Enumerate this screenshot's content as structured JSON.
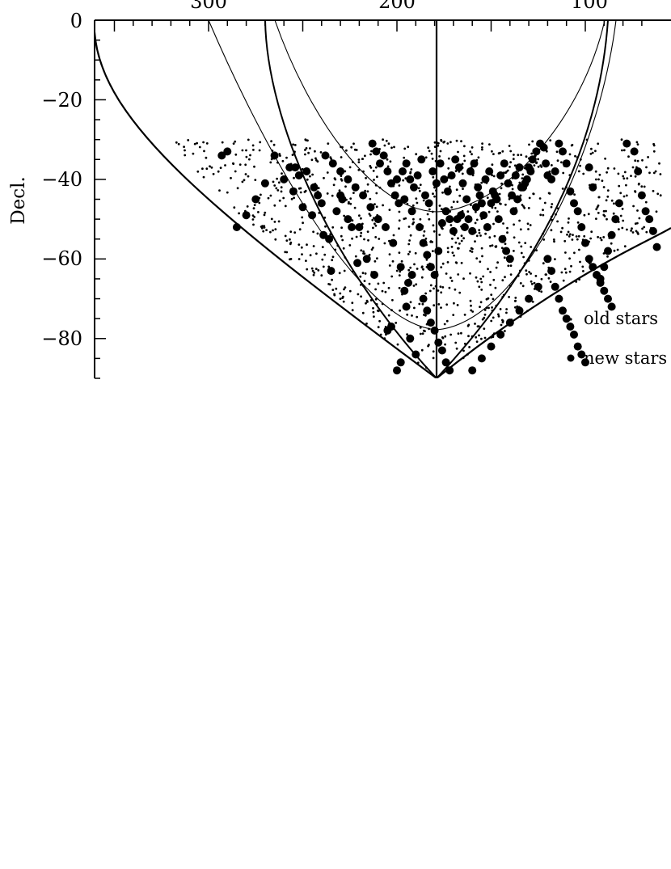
{
  "chart_data": {
    "type": "scatter",
    "title": "",
    "xlabel": "",
    "ylabel": "Decl.",
    "x_direction": "decreasing to the right",
    "xlim": [
      355,
      60
    ],
    "ylim": [
      -90,
      0
    ],
    "x_tick_labels": [
      "300",
      "200",
      "100"
    ],
    "y_tick_labels": [
      "0",
      "-20",
      "-40",
      "-60",
      "-80"
    ],
    "y_tick_label_text": [
      "0",
      "−20",
      "−40",
      "−60",
      "−80"
    ],
    "grid": false,
    "legend_position": "right",
    "series": [
      {
        "name": "old stars",
        "marker": "small dot"
      },
      {
        "name": "new stars",
        "marker": "large filled circle"
      }
    ],
    "legend_labels": [
      "old stars",
      "new stars"
    ],
    "new_stars": [
      [
        293,
        -34
      ],
      [
        290,
        -33
      ],
      [
        265,
        -34
      ],
      [
        257,
        -37
      ],
      [
        254,
        -37
      ],
      [
        252,
        -39
      ],
      [
        248,
        -38
      ],
      [
        244,
        -42
      ],
      [
        242,
        -44
      ],
      [
        240,
        -46
      ],
      [
        239,
        -54
      ],
      [
        236,
        -55
      ],
      [
        235,
        -63
      ],
      [
        229,
        -45
      ],
      [
        224,
        -52
      ],
      [
        221,
        -61
      ],
      [
        216,
        -60
      ],
      [
        212,
        -64
      ],
      [
        205,
        -78
      ],
      [
        203,
        -77
      ],
      [
        200,
        -88
      ],
      [
        198,
        -86
      ],
      [
        195,
        -72
      ],
      [
        193,
        -80
      ],
      [
        190,
        -84
      ],
      [
        213,
        -31
      ],
      [
        211,
        -33
      ],
      [
        209,
        -36
      ],
      [
        207,
        -34
      ],
      [
        205,
        -38
      ],
      [
        203,
        -41
      ],
      [
        201,
        -44
      ],
      [
        199,
        -46
      ],
      [
        197,
        -38
      ],
      [
        195,
        -36
      ],
      [
        193,
        -40
      ],
      [
        191,
        -42
      ],
      [
        189,
        -39
      ],
      [
        187,
        -35
      ],
      [
        185,
        -44
      ],
      [
        183,
        -46
      ],
      [
        181,
        -38
      ],
      [
        179,
        -41
      ],
      [
        177,
        -36
      ],
      [
        175,
        -40
      ],
      [
        173,
        -43
      ],
      [
        171,
        -39
      ],
      [
        169,
        -35
      ],
      [
        167,
        -37
      ],
      [
        165,
        -41
      ],
      [
        163,
        -45
      ],
      [
        161,
        -38
      ],
      [
        159,
        -36
      ],
      [
        157,
        -42
      ],
      [
        155,
        -46
      ],
      [
        153,
        -40
      ],
      [
        151,
        -38
      ],
      [
        149,
        -43
      ],
      [
        147,
        -45
      ],
      [
        145,
        -39
      ],
      [
        143,
        -36
      ],
      [
        141,
        -41
      ],
      [
        139,
        -44
      ],
      [
        137,
        -39
      ],
      [
        135,
        -37
      ],
      [
        133,
        -42
      ],
      [
        131,
        -40
      ],
      [
        129,
        -38
      ],
      [
        200,
        -40
      ],
      [
        196,
        -45
      ],
      [
        192,
        -48
      ],
      [
        188,
        -52
      ],
      [
        186,
        -56
      ],
      [
        184,
        -59
      ],
      [
        182,
        -62
      ],
      [
        180,
        -64
      ],
      [
        178,
        -58
      ],
      [
        176,
        -51
      ],
      [
        174,
        -48
      ],
      [
        172,
        -50
      ],
      [
        170,
        -53
      ],
      [
        168,
        -50
      ],
      [
        166,
        -49
      ],
      [
        164,
        -52
      ],
      [
        162,
        -50
      ],
      [
        160,
        -53
      ],
      [
        158,
        -47
      ],
      [
        156,
        -44
      ],
      [
        154,
        -49
      ],
      [
        152,
        -52
      ],
      [
        150,
        -46
      ],
      [
        148,
        -44
      ],
      [
        146,
        -50
      ],
      [
        144,
        -55
      ],
      [
        142,
        -58
      ],
      [
        140,
        -60
      ],
      [
        138,
        -48
      ],
      [
        136,
        -45
      ],
      [
        134,
        -42
      ],
      [
        132,
        -41
      ],
      [
        130,
        -37
      ],
      [
        128,
        -35
      ],
      [
        126,
        -33
      ],
      [
        124,
        -31
      ],
      [
        122,
        -32
      ],
      [
        121,
        -36
      ],
      [
        120,
        -39
      ],
      [
        118,
        -40
      ],
      [
        116,
        -38
      ],
      [
        114,
        -31
      ],
      [
        112,
        -33
      ],
      [
        110,
        -36
      ],
      [
        108,
        -43
      ],
      [
        106,
        -46
      ],
      [
        104,
        -48
      ],
      [
        102,
        -52
      ],
      [
        100,
        -56
      ],
      [
        98,
        -60
      ],
      [
        96,
        -62
      ],
      [
        94,
        -64
      ],
      [
        92,
        -66
      ],
      [
        90,
        -68
      ],
      [
        88,
        -70
      ],
      [
        86,
        -72
      ],
      [
        120,
        -60
      ],
      [
        118,
        -63
      ],
      [
        116,
        -67
      ],
      [
        114,
        -70
      ],
      [
        112,
        -73
      ],
      [
        110,
        -75
      ],
      [
        108,
        -77
      ],
      [
        106,
        -79
      ],
      [
        104,
        -82
      ],
      [
        102,
        -84
      ],
      [
        100,
        -86
      ],
      [
        186,
        -70
      ],
      [
        184,
        -73
      ],
      [
        182,
        -76
      ],
      [
        180,
        -78
      ],
      [
        178,
        -81
      ],
      [
        176,
        -83
      ],
      [
        174,
        -86
      ],
      [
        172,
        -88
      ],
      [
        196,
        -68
      ],
      [
        194,
        -66
      ],
      [
        192,
        -64
      ],
      [
        198,
        -62
      ],
      [
        202,
        -56
      ],
      [
        206,
        -52
      ],
      [
        210,
        -50
      ],
      [
        214,
        -47
      ],
      [
        218,
        -44
      ],
      [
        222,
        -42
      ],
      [
        226,
        -40
      ],
      [
        230,
        -38
      ],
      [
        234,
        -36
      ],
      [
        238,
        -34
      ],
      [
        160,
        -88
      ],
      [
        155,
        -85
      ],
      [
        150,
        -82
      ],
      [
        145,
        -79
      ],
      [
        140,
        -76
      ],
      [
        135,
        -73
      ],
      [
        130,
        -70
      ],
      [
        125,
        -67
      ],
      [
        230,
        -44
      ],
      [
        232,
        -48
      ],
      [
        226,
        -50
      ],
      [
        220,
        -52
      ],
      [
        245,
        -49
      ],
      [
        250,
        -47
      ],
      [
        255,
        -43
      ],
      [
        260,
        -40
      ],
      [
        270,
        -41
      ],
      [
        275,
        -45
      ],
      [
        280,
        -49
      ],
      [
        285,
        -52
      ],
      [
        78,
        -31
      ],
      [
        74,
        -33
      ],
      [
        72,
        -38
      ],
      [
        70,
        -44
      ],
      [
        68,
        -48
      ],
      [
        66,
        -50
      ],
      [
        64,
        -53
      ],
      [
        62,
        -57
      ],
      [
        82,
        -46
      ],
      [
        84,
        -50
      ],
      [
        86,
        -54
      ],
      [
        88,
        -58
      ],
      [
        90,
        -62
      ],
      [
        92,
        -65
      ],
      [
        96,
        -42
      ],
      [
        98,
        -37
      ]
    ]
  }
}
